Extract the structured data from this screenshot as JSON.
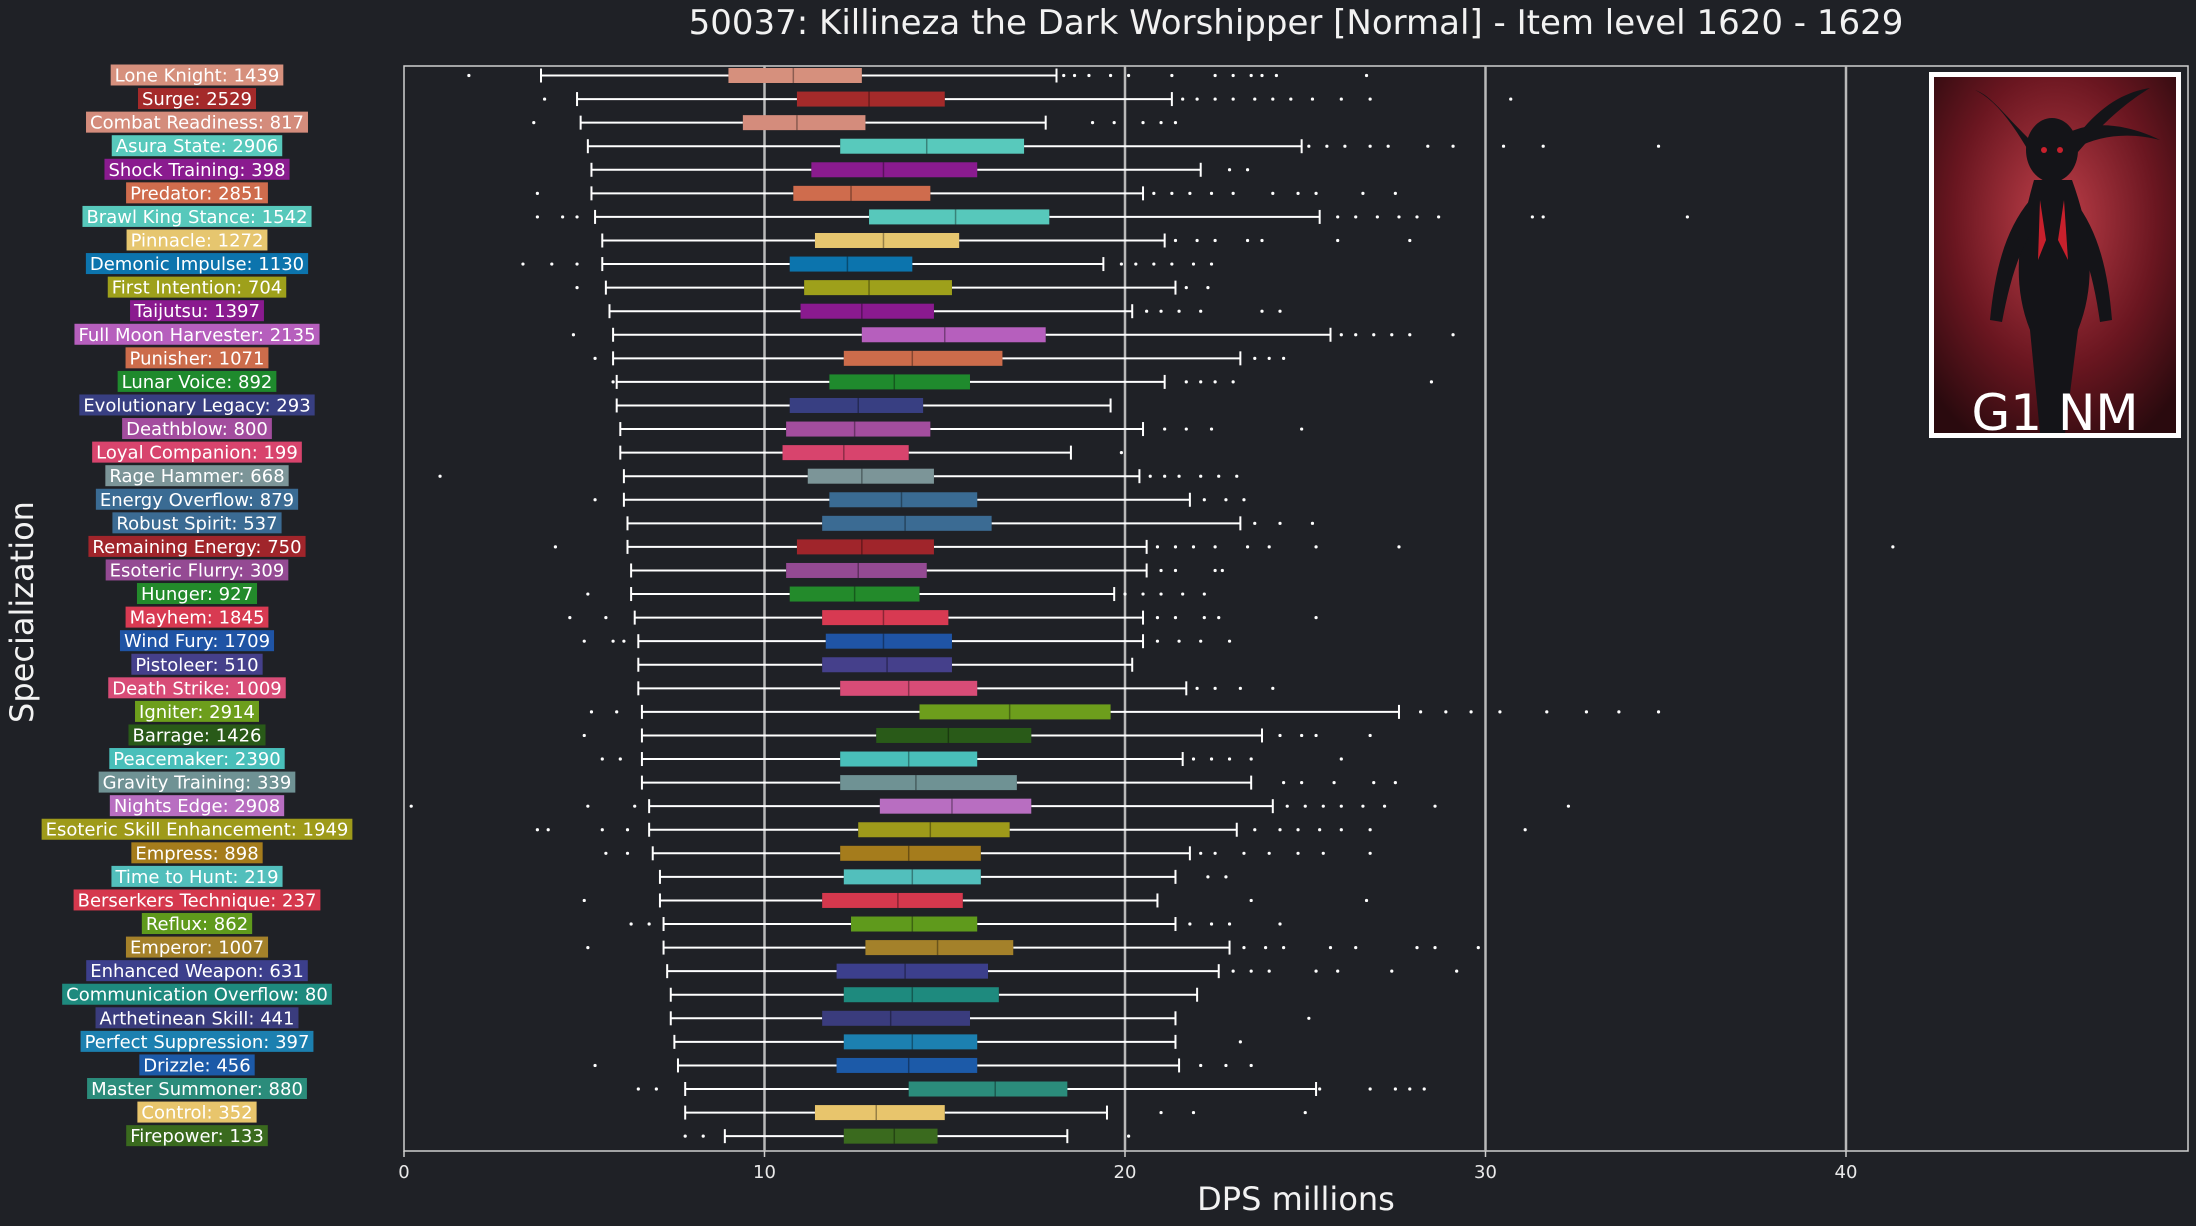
{
  "chart_data": {
    "type": "box",
    "title": "50037: Killineza the Dark Worshipper [Normal] - Item level 1620 - 1629",
    "xlabel": "DPS millions",
    "ylabel": "Specialization",
    "xlim": [
      0,
      48
    ],
    "xticks": [
      0,
      10,
      20,
      30,
      40
    ],
    "grid": "major vertical lines at 10, 20, 30, 40",
    "badge": "G1 NM",
    "series": [
      {
        "label": "Lone Knight: 1439",
        "color": "#d6907d",
        "min": 3.8,
        "q1": 9.0,
        "median": 10.8,
        "q3": 12.7,
        "max": 18.1,
        "outliers": [
          1.8,
          18.3,
          18.6,
          19.0,
          19.6,
          20.1,
          21.3,
          22.5,
          23.0,
          23.5,
          23.8,
          24.2,
          26.7
        ]
      },
      {
        "label": "Surge: 2529",
        "color": "#a42a2a",
        "min": 4.8,
        "q1": 10.9,
        "median": 12.9,
        "q3": 15.0,
        "max": 21.3,
        "outliers": [
          3.9,
          21.6,
          22.0,
          22.5,
          23.0,
          23.6,
          24.1,
          24.6,
          25.2,
          26.0,
          26.8,
          30.7
        ]
      },
      {
        "label": "Combat Readiness: 817",
        "color": "#d48c7c",
        "min": 4.9,
        "q1": 9.4,
        "median": 10.9,
        "q3": 12.8,
        "max": 17.8,
        "outliers": [
          3.6,
          19.1,
          19.7,
          20.5,
          21.0,
          21.4
        ]
      },
      {
        "label": "Asura State: 2906",
        "color": "#58c9bc",
        "min": 5.1,
        "q1": 12.1,
        "median": 14.5,
        "q3": 17.2,
        "max": 24.9,
        "outliers": [
          25.1,
          25.6,
          26.1,
          26.8,
          27.3,
          28.4,
          29.1,
          30.5,
          31.6,
          34.8
        ]
      },
      {
        "label": "Shock Training: 398",
        "color": "#8a1b8f",
        "min": 5.2,
        "q1": 11.3,
        "median": 13.3,
        "q3": 15.9,
        "max": 22.1,
        "outliers": [
          22.9,
          23.4
        ]
      },
      {
        "label": "Predator: 2851",
        "color": "#cf6c4d",
        "min": 5.2,
        "q1": 10.8,
        "median": 12.4,
        "q3": 14.6,
        "max": 20.5,
        "outliers": [
          3.7,
          20.8,
          21.3,
          21.8,
          22.4,
          23.0,
          24.1,
          24.8,
          25.3,
          26.6,
          27.5
        ]
      },
      {
        "label": "Brawl King Stance: 1542",
        "color": "#57c8bb",
        "min": 5.3,
        "q1": 12.9,
        "median": 15.3,
        "q3": 17.9,
        "max": 25.4,
        "outliers": [
          3.7,
          4.4,
          4.8,
          25.9,
          26.4,
          27.0,
          27.6,
          28.1,
          28.7,
          31.3,
          31.6,
          35.6
        ]
      },
      {
        "label": "Pinnacle: 1272",
        "color": "#e6c66f",
        "min": 5.5,
        "q1": 11.4,
        "median": 13.3,
        "q3": 15.4,
        "max": 21.1,
        "outliers": [
          21.4,
          22.0,
          22.5,
          23.4,
          23.8,
          25.9,
          27.9
        ]
      },
      {
        "label": "Demonic Impulse: 1130",
        "color": "#0c74ad",
        "min": 5.5,
        "q1": 10.7,
        "median": 12.3,
        "q3": 14.1,
        "max": 19.4,
        "outliers": [
          3.3,
          4.1,
          4.8,
          19.9,
          20.3,
          20.8,
          21.3,
          21.9,
          22.4
        ]
      },
      {
        "label": "First Intention: 704",
        "color": "#9ea01b",
        "min": 5.6,
        "q1": 11.1,
        "median": 12.9,
        "q3": 15.2,
        "max": 21.4,
        "outliers": [
          4.8,
          21.7,
          22.3
        ]
      },
      {
        "label": "Taijutsu: 1397",
        "color": "#8a1a8f",
        "min": 5.7,
        "q1": 11.0,
        "median": 12.7,
        "q3": 14.7,
        "max": 20.2,
        "outliers": [
          20.6,
          21.0,
          21.5,
          22.1,
          23.8,
          24.3
        ]
      },
      {
        "label": "Full Moon Harvester: 2135",
        "color": "#b65fbd",
        "min": 5.8,
        "q1": 12.7,
        "median": 15.0,
        "q3": 17.8,
        "max": 25.7,
        "outliers": [
          4.7,
          26.0,
          26.4,
          26.9,
          27.4,
          27.9,
          29.1
        ]
      },
      {
        "label": "Punisher: 1071",
        "color": "#cc6c4b",
        "min": 5.8,
        "q1": 12.2,
        "median": 14.1,
        "q3": 16.6,
        "max": 23.2,
        "outliers": [
          5.3,
          23.6,
          24.0,
          24.4
        ]
      },
      {
        "label": "Lunar Voice: 892",
        "color": "#1f8a2d",
        "min": 5.9,
        "q1": 11.8,
        "median": 13.6,
        "q3": 15.7,
        "max": 21.1,
        "outliers": [
          5.8,
          21.7,
          22.1,
          22.5,
          23.0,
          28.5
        ]
      },
      {
        "label": "Evolutionary Legacy: 293",
        "color": "#383f82",
        "min": 5.9,
        "q1": 10.7,
        "median": 12.6,
        "q3": 14.4,
        "max": 19.6,
        "outliers": []
      },
      {
        "label": "Deathblow: 800",
        "color": "#a34d9e",
        "min": 6.0,
        "q1": 10.6,
        "median": 12.5,
        "q3": 14.6,
        "max": 20.5,
        "outliers": [
          21.1,
          21.7,
          22.4,
          24.9
        ]
      },
      {
        "label": "Loyal Companion: 199",
        "color": "#d8446d",
        "min": 6.0,
        "q1": 10.5,
        "median": 12.2,
        "q3": 14.0,
        "max": 18.5,
        "outliers": [
          19.9
        ]
      },
      {
        "label": "Rage Hammer: 668",
        "color": "#7c9598",
        "min": 6.1,
        "q1": 11.2,
        "median": 12.7,
        "q3": 14.7,
        "max": 20.4,
        "outliers": [
          1.0,
          20.7,
          21.1,
          21.5,
          22.1,
          22.6,
          23.1
        ]
      },
      {
        "label": "Energy Overflow: 879",
        "color": "#3a6b93",
        "min": 6.1,
        "q1": 11.8,
        "median": 13.8,
        "q3": 15.9,
        "max": 21.8,
        "outliers": [
          5.3,
          22.2,
          22.8,
          23.3
        ]
      },
      {
        "label": "Robust Spirit: 537",
        "color": "#3b6b93",
        "min": 6.2,
        "q1": 11.6,
        "median": 13.9,
        "q3": 16.3,
        "max": 23.2,
        "outliers": [
          23.6,
          24.3,
          25.2
        ]
      },
      {
        "label": "Remaining Energy: 750",
        "color": "#a0252b",
        "min": 6.2,
        "q1": 10.9,
        "median": 12.7,
        "q3": 14.7,
        "max": 20.6,
        "outliers": [
          4.2,
          20.9,
          21.4,
          21.9,
          22.5,
          23.4,
          24.0,
          25.3,
          27.6,
          41.3
        ]
      },
      {
        "label": "Esoteric Flurry: 309",
        "color": "#944a93",
        "min": 6.3,
        "q1": 10.6,
        "median": 12.6,
        "q3": 14.5,
        "max": 20.6,
        "outliers": [
          21.0,
          21.4,
          22.5,
          22.7
        ]
      },
      {
        "label": "Hunger: 927",
        "color": "#238a2b",
        "min": 6.3,
        "q1": 10.7,
        "median": 12.5,
        "q3": 14.3,
        "max": 19.7,
        "outliers": [
          5.1,
          20.0,
          20.5,
          21.0,
          21.6,
          22.2
        ]
      },
      {
        "label": "Mayhem: 1845",
        "color": "#d83a52",
        "min": 6.4,
        "q1": 11.6,
        "median": 13.3,
        "q3": 15.1,
        "max": 20.5,
        "outliers": [
          4.6,
          5.6,
          20.9,
          21.4,
          22.2,
          22.6,
          25.3
        ]
      },
      {
        "label": "Wind Fury: 1709",
        "color": "#1f54a5",
        "min": 6.5,
        "q1": 11.7,
        "median": 13.3,
        "q3": 15.2,
        "max": 20.5,
        "outliers": [
          5.0,
          5.8,
          6.1,
          20.9,
          21.5,
          22.1,
          22.9
        ]
      },
      {
        "label": "Pistoleer: 510",
        "color": "#45408b",
        "min": 6.5,
        "q1": 11.6,
        "median": 13.4,
        "q3": 15.2,
        "max": 20.2,
        "outliers": []
      },
      {
        "label": "Death Strike: 1009",
        "color": "#d84c77",
        "min": 6.5,
        "q1": 12.1,
        "median": 14.0,
        "q3": 15.9,
        "max": 21.7,
        "outliers": [
          22.0,
          22.5,
          23.2,
          24.1
        ]
      },
      {
        "label": "Igniter: 2914",
        "color": "#6d9e1c",
        "min": 6.6,
        "q1": 14.3,
        "median": 16.8,
        "q3": 19.6,
        "max": 27.6,
        "outliers": [
          5.2,
          5.9,
          28.2,
          28.9,
          29.6,
          30.4,
          31.7,
          32.8,
          33.7,
          34.8
        ]
      },
      {
        "label": "Barrage: 1426",
        "color": "#295a18",
        "min": 6.6,
        "q1": 13.1,
        "median": 15.1,
        "q3": 17.4,
        "max": 23.8,
        "outliers": [
          5.0,
          24.3,
          24.9,
          25.3,
          26.8
        ]
      },
      {
        "label": "Peacemaker: 2390",
        "color": "#49bfba",
        "min": 6.6,
        "q1": 12.1,
        "median": 14.0,
        "q3": 15.9,
        "max": 21.6,
        "outliers": [
          5.5,
          6.0,
          21.9,
          22.4,
          22.9,
          23.5,
          26.0
        ]
      },
      {
        "label": "Gravity Training: 339",
        "color": "#6f9294",
        "min": 6.6,
        "q1": 12.1,
        "median": 14.2,
        "q3": 17.0,
        "max": 23.5,
        "outliers": [
          24.4,
          24.9,
          25.8,
          26.9,
          27.5
        ]
      },
      {
        "label": "Nights Edge: 2908",
        "color": "#b86ec1",
        "min": 6.8,
        "q1": 13.2,
        "median": 15.2,
        "q3": 17.4,
        "max": 24.1,
        "outliers": [
          0.2,
          5.1,
          6.4,
          24.5,
          25.0,
          25.5,
          26.0,
          26.6,
          27.2,
          28.6,
          32.3
        ]
      },
      {
        "label": "Esoteric Skill Enhancement: 1949",
        "color": "#9e9a1a",
        "min": 6.8,
        "q1": 12.6,
        "median": 14.6,
        "q3": 16.8,
        "max": 23.1,
        "outliers": [
          3.7,
          4.0,
          5.5,
          6.2,
          23.6,
          24.3,
          24.8,
          25.4,
          26.0,
          26.8,
          31.1
        ]
      },
      {
        "label": "Empress: 898",
        "color": "#a57c1c",
        "min": 6.9,
        "q1": 12.1,
        "median": 14.0,
        "q3": 16.0,
        "max": 21.8,
        "outliers": [
          5.6,
          6.2,
          22.1,
          22.5,
          23.3,
          24.0,
          24.8,
          25.5,
          26.8
        ]
      },
      {
        "label": "Time to Hunt: 219",
        "color": "#52bfbc",
        "min": 7.1,
        "q1": 12.2,
        "median": 14.1,
        "q3": 16.0,
        "max": 21.4,
        "outliers": [
          22.3,
          22.8
        ]
      },
      {
        "label": "Berserkers Technique: 237",
        "color": "#d5384d",
        "min": 7.1,
        "q1": 11.6,
        "median": 13.7,
        "q3": 15.5,
        "max": 20.9,
        "outliers": [
          5.0,
          23.5,
          26.7
        ]
      },
      {
        "label": "Reflux: 862",
        "color": "#5f9a1c",
        "min": 7.2,
        "q1": 12.4,
        "median": 14.1,
        "q3": 15.9,
        "max": 21.4,
        "outliers": [
          6.3,
          6.8,
          21.8,
          22.4,
          22.9,
          24.3
        ]
      },
      {
        "label": "Emperor: 1007",
        "color": "#a4812a",
        "min": 7.2,
        "q1": 12.8,
        "median": 14.8,
        "q3": 16.9,
        "max": 22.9,
        "outliers": [
          5.1,
          23.3,
          23.9,
          24.4,
          25.7,
          26.4,
          28.1,
          28.6,
          29.8
        ]
      },
      {
        "label": "Enhanced Weapon: 631",
        "color": "#3c3f8c",
        "min": 7.3,
        "q1": 12.0,
        "median": 13.9,
        "q3": 16.2,
        "max": 22.6,
        "outliers": [
          23.0,
          23.5,
          24.0,
          25.3,
          25.9,
          27.4,
          29.2
        ]
      },
      {
        "label": "Communication Overflow: 80",
        "color": "#1e8a7e",
        "min": 7.4,
        "q1": 12.2,
        "median": 14.1,
        "q3": 16.5,
        "max": 22.0,
        "outliers": []
      },
      {
        "label": "Arthetinean Skill: 441",
        "color": "#3a3c7d",
        "min": 7.4,
        "q1": 11.6,
        "median": 13.5,
        "q3": 15.7,
        "max": 21.4,
        "outliers": [
          25.1
        ]
      },
      {
        "label": "Perfect Suppression: 397",
        "color": "#1c80b0",
        "min": 7.5,
        "q1": 12.2,
        "median": 14.1,
        "q3": 15.9,
        "max": 21.4,
        "outliers": [
          23.2
        ]
      },
      {
        "label": "Drizzle: 456",
        "color": "#1c5aa8",
        "min": 7.6,
        "q1": 12.0,
        "median": 14.0,
        "q3": 15.9,
        "max": 21.5,
        "outliers": [
          5.3,
          22.1,
          22.8,
          23.5
        ]
      },
      {
        "label": "Master Summoner: 880",
        "color": "#2b8c7b",
        "min": 7.8,
        "q1": 14.0,
        "median": 16.4,
        "q3": 18.4,
        "max": 25.3,
        "outliers": [
          6.5,
          7.0,
          25.4,
          26.8,
          27.5,
          27.9,
          28.3
        ]
      },
      {
        "label": "Control: 352",
        "color": "#e8c56c",
        "min": 7.8,
        "q1": 11.4,
        "median": 13.1,
        "q3": 15.0,
        "max": 19.5,
        "outliers": [
          21.0,
          21.9,
          25.0
        ]
      },
      {
        "label": "Firepower: 133",
        "color": "#3a6a1e",
        "min": 8.9,
        "q1": 12.2,
        "median": 13.6,
        "q3": 14.8,
        "max": 18.4,
        "outliers": [
          7.8,
          8.3,
          20.1
        ]
      }
    ]
  }
}
